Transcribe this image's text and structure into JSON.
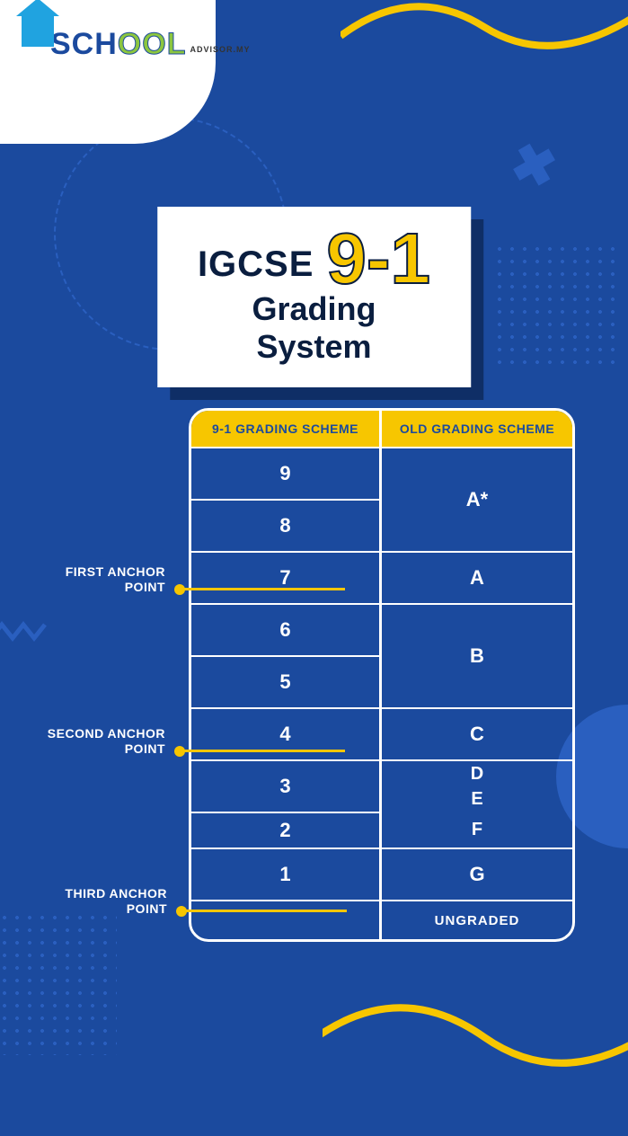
{
  "colors": {
    "background": "#1b4a9e",
    "accent_yellow": "#f7c600",
    "white": "#ffffff",
    "dark_navy": "#0a1e3f",
    "deco_blue": "#2a5fbf",
    "logo_blue": "#20a3e0",
    "logo_green": "#8cc63f"
  },
  "logo": {
    "text_part1": "SCH",
    "text_part2": "OOL",
    "subtext": "ADVISOR.MY"
  },
  "title": {
    "prefix": "IGCSE",
    "highlight": "9-1",
    "subtitle": "Grading System"
  },
  "table": {
    "header_new": "9-1 GRADING SCHEME",
    "header_old": "OLD GRADING SCHEME",
    "rows_new": [
      "9",
      "8",
      "7",
      "6",
      "5",
      "4",
      "3",
      "2",
      "1"
    ],
    "old_grades": {
      "a_star": "A*",
      "a": "A",
      "b": "B",
      "c": "C",
      "d": "D",
      "e": "E",
      "f": "F",
      "g": "G",
      "ungraded": "UNGRADED"
    }
  },
  "anchors": {
    "first": "FIRST ANCHOR POINT",
    "second": "SECOND ANCHOR POINT",
    "third": "THIRD ANCHOR POINT"
  }
}
